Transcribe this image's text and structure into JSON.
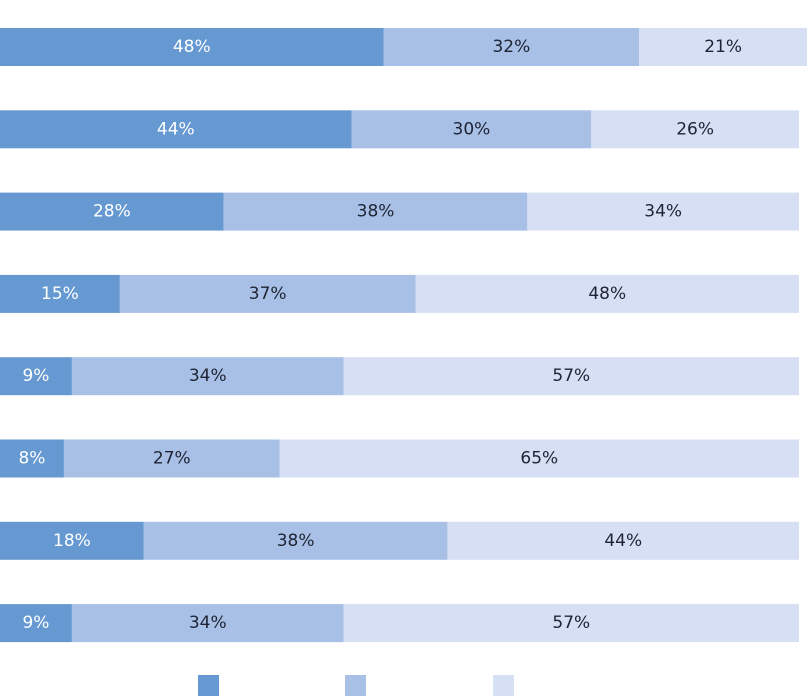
{
  "chart_data": {
    "type": "bar",
    "orientation": "horizontal",
    "stacked": true,
    "title": "",
    "xlabel": "",
    "ylabel": "",
    "xlim": [
      0,
      101
    ],
    "grid": false,
    "legend": "bottom",
    "categories": [
      "",
      "",
      "",
      "",
      "",
      "",
      "",
      ""
    ],
    "series": [
      {
        "color": "#6699d1",
        "label_color": "#ffffff",
        "values": [
          48,
          44,
          28,
          15,
          9,
          8,
          18,
          9
        ],
        "labels": [
          "48%",
          "44%",
          "28%",
          "15%",
          "9%",
          "8%",
          "18%",
          "9%"
        ]
      },
      {
        "color": "#a8bfe6",
        "label_color": "#1e2433",
        "values": [
          32,
          30,
          38,
          37,
          34,
          27,
          38,
          34
        ],
        "labels": [
          "32%",
          "30%",
          "38%",
          "37%",
          "34%",
          "27%",
          "38%",
          "34%"
        ]
      },
      {
        "color": "#d6dff4",
        "label_color": "#1e2433",
        "values": [
          21,
          26,
          34,
          48,
          57,
          65,
          44,
          57
        ],
        "labels": [
          "21%",
          "26%",
          "34%",
          "48%",
          "57%",
          "65%",
          "44%",
          "57%"
        ]
      }
    ]
  }
}
